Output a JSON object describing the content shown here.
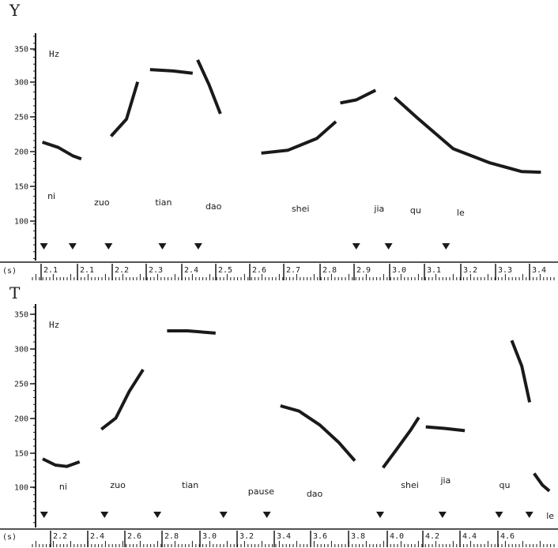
{
  "chart_data": [
    {
      "type": "scatter",
      "title": "Y",
      "ylabel": "Hz",
      "xlabel": "(s)",
      "yticks": [
        "350",
        "300",
        "250",
        "200",
        "150",
        "100"
      ],
      "ylim": [
        50,
        370
      ],
      "xticks": [
        "2.1",
        "2.1",
        "2.2",
        "2.3",
        "2.4",
        "2.5",
        "2.6",
        "2.7",
        "2.8",
        "2.9",
        "3.0",
        "3.1",
        "3.2",
        "3.3",
        "3.4"
      ],
      "xlim": [
        2.02,
        3.44
      ],
      "syllables": [
        {
          "label": "ni",
          "x": 2.04
        },
        {
          "label": "zuo",
          "x": 2.17
        },
        {
          "label": "tian",
          "x": 2.34
        },
        {
          "label": "dao",
          "x": 2.48
        },
        {
          "label": "shei",
          "x": 2.72
        },
        {
          "label": "jia",
          "x": 2.95
        },
        {
          "label": "qu",
          "x": 3.05
        },
        {
          "label": "le",
          "x": 3.18
        }
      ],
      "boundaries": [
        2.03,
        2.11,
        2.21,
        2.36,
        2.46,
        2.9,
        2.99,
        3.15
      ],
      "series": [
        {
          "values": [
            [
              2.03,
              214
            ],
            [
              2.07,
              207
            ],
            [
              2.11,
              195
            ],
            [
              2.13,
              191
            ]
          ]
        },
        {
          "values": [
            [
              2.22,
              225
            ],
            [
              2.26,
              248
            ],
            [
              2.29,
              300
            ]
          ]
        },
        {
          "values": [
            [
              2.33,
              320
            ],
            [
              2.39,
              318
            ],
            [
              2.44,
              315
            ]
          ]
        },
        {
          "values": [
            [
              2.46,
              332
            ],
            [
              2.49,
              298
            ],
            [
              2.52,
              258
            ]
          ]
        },
        {
          "values": [
            [
              2.64,
              199
            ],
            [
              2.71,
              203
            ],
            [
              2.79,
              220
            ],
            [
              2.84,
              243
            ]
          ]
        },
        {
          "values": [
            [
              2.86,
              272
            ],
            [
              2.9,
              276
            ],
            [
              2.95,
              289
            ]
          ]
        },
        {
          "values": [
            [
              3.01,
              278
            ],
            [
              3.07,
              250
            ],
            [
              3.17,
              205
            ],
            [
              3.27,
              185
            ],
            [
              3.36,
              172
            ],
            [
              3.41,
              171
            ]
          ]
        }
      ]
    },
    {
      "type": "scatter",
      "title": "T",
      "ylabel": "Hz",
      "xlabel": "(s)",
      "yticks": [
        "350",
        "300",
        "250",
        "200",
        "150",
        "100"
      ],
      "ylim": [
        50,
        370
      ],
      "xticks": [
        "2.2",
        "2.4",
        "2.6",
        "2.8",
        "3.0",
        "3.2",
        "3.4",
        "3.6",
        "3.8",
        "4.0",
        "4.2",
        "4.4",
        "4.6"
      ],
      "xlim": [
        2.0,
        4.7
      ],
      "syllables": [
        {
          "label": "ni",
          "x": 2.1
        },
        {
          "label": "zuo",
          "x": 2.37
        },
        {
          "label": "tian",
          "x": 2.75
        },
        {
          "label": "pause",
          "x": 3.1
        },
        {
          "label": "dao",
          "x": 3.41
        },
        {
          "label": "shei",
          "x": 3.91
        },
        {
          "label": "jia",
          "x": 4.12
        },
        {
          "label": "qu",
          "x": 4.43
        },
        {
          "label": "le",
          "x": 4.68
        }
      ],
      "boundaries": [
        2.02,
        2.34,
        2.62,
        2.97,
        3.2,
        3.8,
        4.13,
        4.43,
        4.59
      ],
      "series": [
        {
          "values": [
            [
              2.02,
              140
            ],
            [
              2.08,
              132
            ],
            [
              2.14,
              130
            ],
            [
              2.2,
              136
            ]
          ]
        },
        {
          "values": [
            [
              2.33,
              185
            ],
            [
              2.4,
              200
            ],
            [
              2.47,
              238
            ],
            [
              2.54,
              268
            ]
          ]
        },
        {
          "values": [
            [
              2.68,
              326
            ],
            [
              2.78,
              326
            ],
            [
              2.92,
              323
            ]
          ]
        },
        {
          "values": [
            [
              3.28,
              217
            ],
            [
              3.37,
              210
            ],
            [
              3.48,
              190
            ],
            [
              3.58,
              165
            ],
            [
              3.66,
              140
            ]
          ]
        },
        {
          "values": [
            [
              3.82,
              130
            ],
            [
              3.88,
              152
            ],
            [
              3.96,
              182
            ],
            [
              4.0,
              199
            ]
          ]
        },
        {
          "values": [
            [
              4.05,
              187
            ],
            [
              4.14,
              185
            ],
            [
              4.24,
              182
            ]
          ]
        },
        {
          "values": [
            [
              4.5,
              310
            ],
            [
              4.55,
              275
            ],
            [
              4.59,
              225
            ]
          ]
        },
        {
          "values": [
            [
              4.62,
              118
            ],
            [
              4.66,
              103
            ],
            [
              4.69,
              96
            ]
          ]
        }
      ]
    }
  ]
}
